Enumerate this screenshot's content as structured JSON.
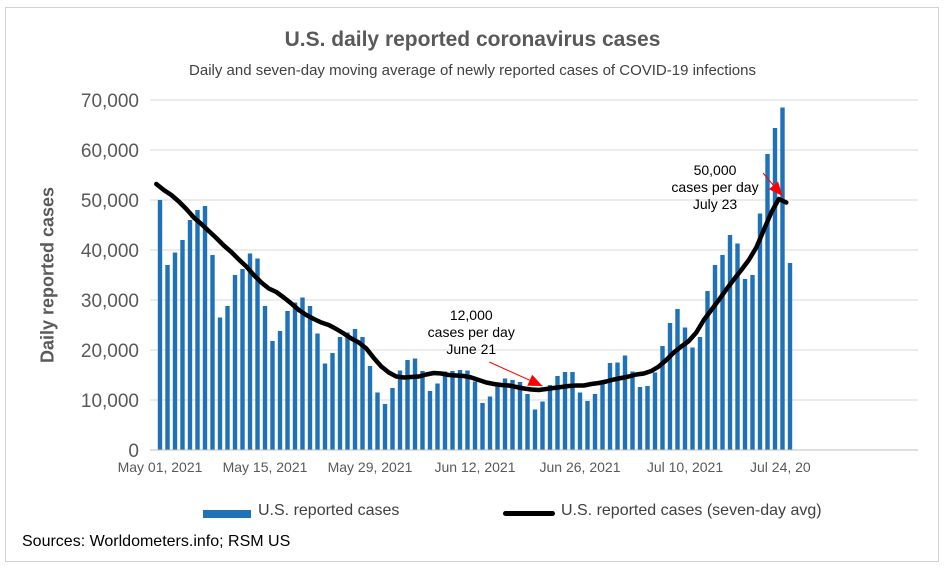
{
  "chart_data": {
    "type": "bar",
    "title": "U.S. daily reported coronavirus cases",
    "subtitle": "Daily and seven-day moving average of newly reported cases of COVID-19 infections",
    "ylabel": "Daily reported cases",
    "ylim": [
      0,
      70000
    ],
    "y_ticks": [
      "0",
      "10,000",
      "20,000",
      "30,000",
      "40,000",
      "50,000",
      "60,000",
      "70,000"
    ],
    "x_ticks": [
      "May 01, 2021",
      "May 15, 2021",
      "May 29, 2021",
      "Jun 12, 2021",
      "Jun 26, 2021",
      "Jul 10, 2021",
      "Jul 24, 20"
    ],
    "x_tick_days": [
      0,
      14,
      28,
      42,
      56,
      70,
      84
    ],
    "grid": "horizontal",
    "legend_position": "bottom",
    "series": [
      {
        "name": "U.S. reported cases",
        "kind": "bar",
        "color": "#1f72b8",
        "values": [
          50000,
          37000,
          39500,
          42000,
          46000,
          48000,
          48800,
          39000,
          26500,
          28800,
          35000,
          36200,
          39300,
          38300,
          28800,
          21800,
          23800,
          27800,
          29500,
          30500,
          28800,
          23300,
          17300,
          19400,
          22600,
          23500,
          24200,
          22600,
          16800,
          11500,
          9200,
          12400,
          15900,
          18000,
          18300,
          15800,
          11800,
          13300,
          15700,
          15800,
          16000,
          15900,
          13700,
          9400,
          10700,
          12800,
          14300,
          14000,
          13600,
          11200,
          8100,
          9700,
          13000,
          14800,
          15600,
          15600,
          11500,
          9800,
          11200,
          13800,
          17400,
          17500,
          18900,
          15700,
          12600,
          12800,
          15500,
          20800,
          25400,
          28200,
          24500,
          20500,
          22600,
          31800,
          37000,
          39000,
          43000,
          41300,
          34200,
          35000,
          47300,
          59200,
          64400,
          68500,
          37400
        ]
      },
      {
        "name": "U.S. reported cases (seven-day avg)",
        "kind": "line",
        "color": "#000000",
        "values": [
          53200,
          52000,
          51000,
          49700,
          48200,
          46500,
          45200,
          43800,
          42400,
          40900,
          39600,
          38100,
          36700,
          35000,
          33500,
          32300,
          31600,
          30500,
          29300,
          28000,
          27000,
          26200,
          25500,
          25000,
          24200,
          23300,
          22300,
          21500,
          20300,
          18400,
          16700,
          15500,
          14700,
          14500,
          14600,
          14700,
          15100,
          15400,
          15300,
          15000,
          14900,
          14800,
          14500,
          14000,
          13500,
          13200,
          13000,
          12900,
          12600,
          12300,
          12100,
          12000,
          12200,
          12400,
          12600,
          12800,
          12900,
          12900,
          13200,
          13400,
          13700,
          14100,
          14400,
          14700,
          15100,
          15300,
          15800,
          16700,
          18000,
          19500,
          20700,
          21800,
          23500,
          26000,
          28000,
          30000,
          32100,
          34100,
          36000,
          38000,
          40500,
          44000,
          47500,
          50200,
          49500
        ]
      }
    ],
    "annotations": [
      {
        "lines": [
          "12,000",
          "cases per day",
          "June 21"
        ],
        "target_day": 51,
        "target_value": 12000,
        "text_day": 41.5,
        "text_value": 26000
      },
      {
        "lines": [
          "50,000",
          "cases per day",
          "July 23"
        ],
        "target_day": 83,
        "target_value": 50000,
        "text_day": 74,
        "text_value": 55000
      }
    ]
  },
  "source_text": "Sources: Worldometers.info; RSM US"
}
